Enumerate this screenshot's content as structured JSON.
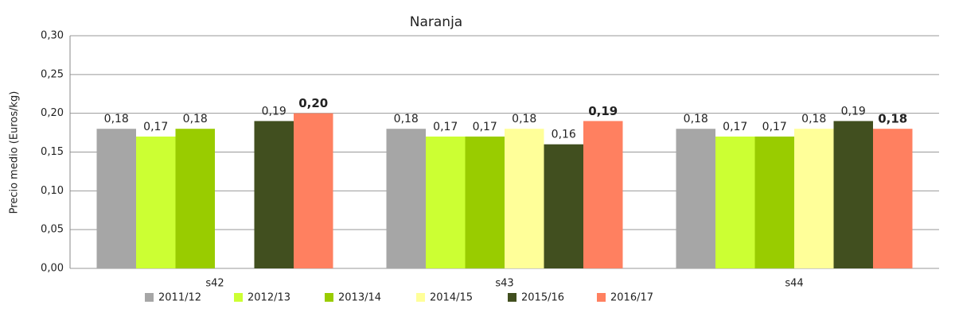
{
  "chart_data": {
    "type": "bar",
    "title": "Naranja",
    "y_label": "Precio medio (Euros/kg)",
    "categories": [
      "s42",
      "s43",
      "s44"
    ],
    "series": [
      {
        "name": "2011/12",
        "color": "#a6a6a6",
        "values": [
          0.18,
          0.18,
          0.18
        ],
        "value_labels": [
          "0,18",
          "0,18",
          "0,18"
        ]
      },
      {
        "name": "2012/13",
        "color": "#ccff33",
        "values": [
          0.17,
          0.17,
          0.17
        ],
        "value_labels": [
          "0,17",
          "0,17",
          "0,17"
        ]
      },
      {
        "name": "2013/14",
        "color": "#99cc00",
        "values": [
          0.18,
          0.17,
          0.17
        ],
        "value_labels": [
          "0,18",
          "0,17",
          "0,17"
        ]
      },
      {
        "name": "2014/15",
        "color": "#ffff99",
        "values": [
          null,
          0.18,
          0.18
        ],
        "value_labels": [
          null,
          "0,18",
          "0,18"
        ]
      },
      {
        "name": "2015/16",
        "color": "#414f1f",
        "values": [
          0.19,
          0.16,
          0.19
        ],
        "value_labels": [
          "0,19",
          "0,16",
          "0,19"
        ]
      },
      {
        "name": "2016/17",
        "color": "#ff8060",
        "values": [
          0.2,
          0.19,
          0.18
        ],
        "value_labels": [
          "0,20",
          "0,19",
          "0,18"
        ]
      }
    ],
    "ylim": [
      0,
      0.3
    ],
    "yticks": [
      {
        "value": 0,
        "label": "0,00"
      },
      {
        "value": 0.05,
        "label": "0,05"
      },
      {
        "value": 0.1,
        "label": "0,10"
      },
      {
        "value": 0.15,
        "label": "0,15"
      },
      {
        "value": 0.2,
        "label": "0,20"
      },
      {
        "value": 0.25,
        "label": "0,25"
      },
      {
        "value": 0.3,
        "label": "0,30"
      }
    ],
    "grid": true
  }
}
